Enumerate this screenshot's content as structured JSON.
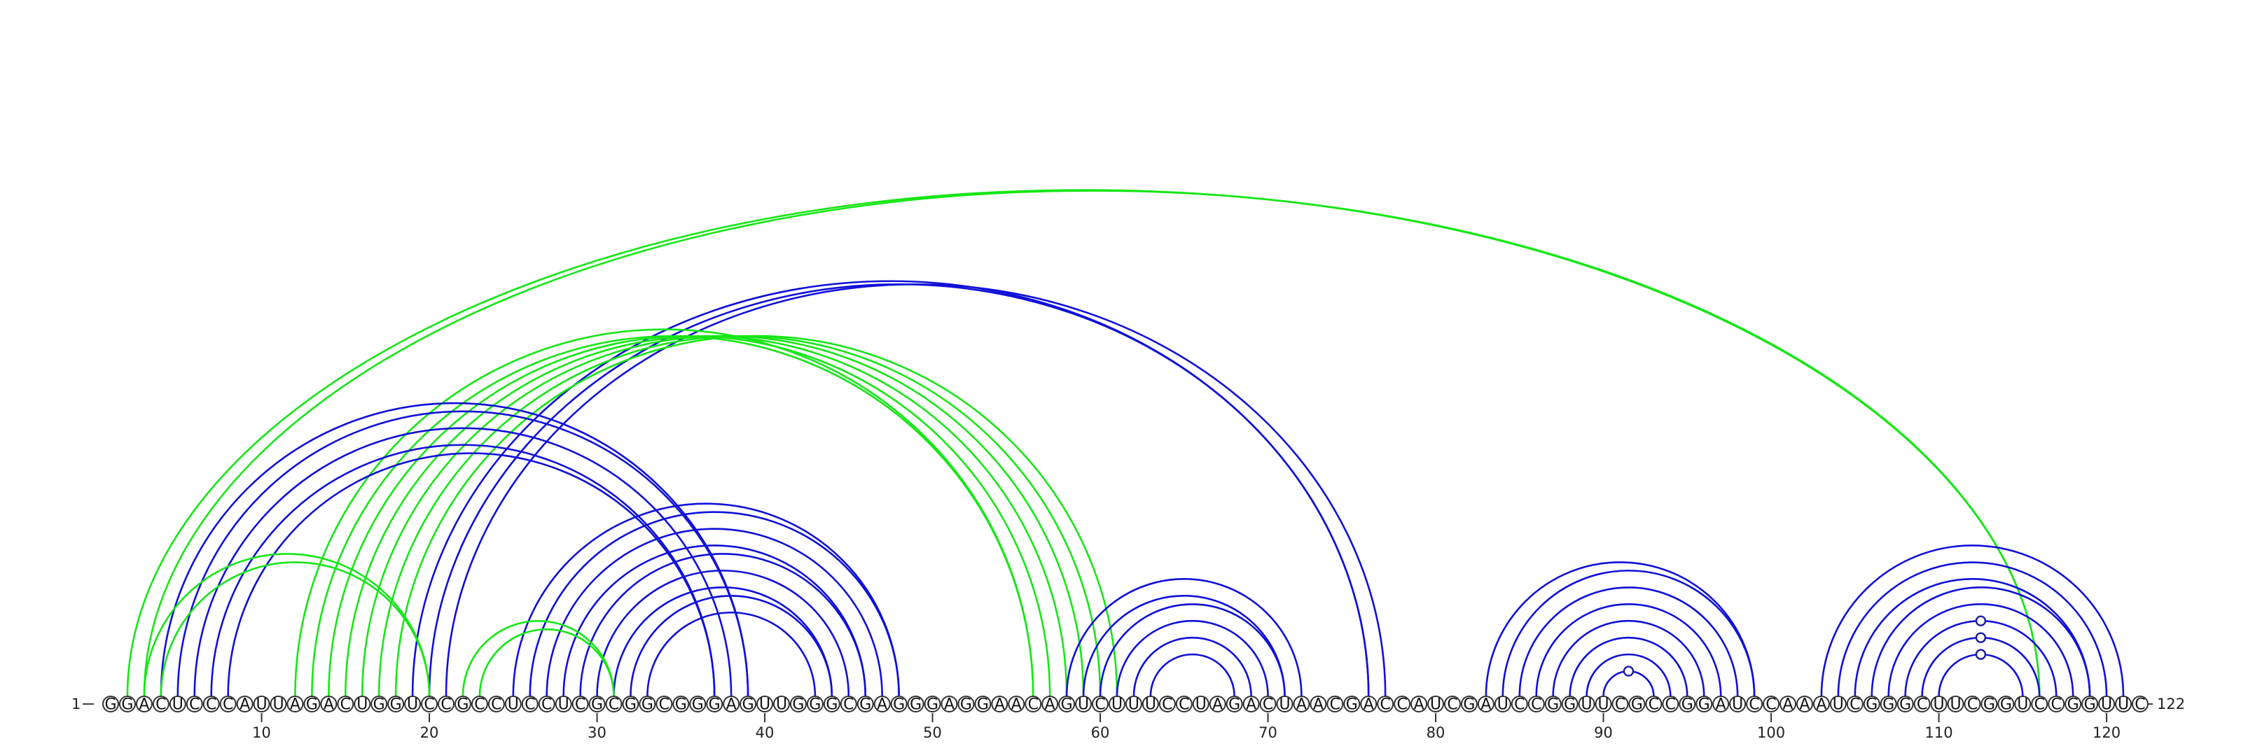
{
  "sequence": "GGACUCCCAUUAGACUGGUCCGCCUCCUCGCGGCGGGAGUUGGGCGAGGGAGGAACAGUCUUUCCUAGACUAACGACCAUCGAUCCGGUUCGCCGGAUCCAAAUCGGGCUUCGGUCCGGUUC",
  "start_label": "1",
  "end_label": "122",
  "ticks": [
    10,
    20,
    30,
    40,
    50,
    60,
    70,
    80,
    90,
    100,
    110,
    120
  ],
  "colors": {
    "blue": "#1010d8",
    "green": "#17e617"
  },
  "arcs": [
    {
      "i": 2,
      "j": 116,
      "color": "green"
    },
    {
      "i": 3,
      "j": 116,
      "color": "green"
    },
    {
      "i": 3,
      "j": 20,
      "color": "green"
    },
    {
      "i": 4,
      "j": 20,
      "color": "green"
    },
    {
      "i": 22,
      "j": 31,
      "color": "green"
    },
    {
      "i": 23,
      "j": 31,
      "color": "green"
    },
    {
      "i": 12,
      "j": 56,
      "color": "green"
    },
    {
      "i": 13,
      "j": 56,
      "color": "green"
    },
    {
      "i": 14,
      "j": 57,
      "color": "green"
    },
    {
      "i": 15,
      "j": 58,
      "color": "green"
    },
    {
      "i": 16,
      "j": 59,
      "color": "green"
    },
    {
      "i": 17,
      "j": 60,
      "color": "green"
    },
    {
      "i": 18,
      "j": 61,
      "color": "green"
    },
    {
      "i": 4,
      "j": 39,
      "color": "blue"
    },
    {
      "i": 5,
      "j": 39,
      "color": "blue"
    },
    {
      "i": 6,
      "j": 38,
      "color": "blue"
    },
    {
      "i": 7,
      "j": 37,
      "color": "blue"
    },
    {
      "i": 8,
      "j": 37,
      "color": "blue"
    },
    {
      "i": 19,
      "j": 76,
      "color": "blue"
    },
    {
      "i": 20,
      "j": 76,
      "color": "blue"
    },
    {
      "i": 21,
      "j": 77,
      "color": "blue"
    },
    {
      "i": 25,
      "j": 48,
      "color": "blue"
    },
    {
      "i": 26,
      "j": 48,
      "color": "blue"
    },
    {
      "i": 27,
      "j": 47,
      "color": "blue"
    },
    {
      "i": 28,
      "j": 46,
      "color": "blue"
    },
    {
      "i": 29,
      "j": 46,
      "color": "blue"
    },
    {
      "i": 30,
      "j": 45,
      "color": "blue"
    },
    {
      "i": 31,
      "j": 44,
      "color": "blue"
    },
    {
      "i": 32,
      "j": 44,
      "color": "blue"
    },
    {
      "i": 33,
      "j": 43,
      "color": "blue"
    },
    {
      "i": 58,
      "j": 72,
      "color": "blue"
    },
    {
      "i": 59,
      "j": 71,
      "color": "blue"
    },
    {
      "i": 60,
      "j": 71,
      "color": "blue"
    },
    {
      "i": 61,
      "j": 70,
      "color": "blue"
    },
    {
      "i": 62,
      "j": 69,
      "color": "blue"
    },
    {
      "i": 63,
      "j": 68,
      "color": "blue"
    },
    {
      "i": 83,
      "j": 99,
      "color": "blue"
    },
    {
      "i": 84,
      "j": 99,
      "color": "blue"
    },
    {
      "i": 85,
      "j": 98,
      "color": "blue"
    },
    {
      "i": 86,
      "j": 97,
      "color": "blue"
    },
    {
      "i": 87,
      "j": 96,
      "color": "blue"
    },
    {
      "i": 88,
      "j": 95,
      "color": "blue"
    },
    {
      "i": 89,
      "j": 94,
      "color": "blue"
    },
    {
      "i": 90,
      "j": 93,
      "color": "blue"
    },
    {
      "i": 103,
      "j": 121,
      "color": "blue"
    },
    {
      "i": 104,
      "j": 120,
      "color": "blue"
    },
    {
      "i": 105,
      "j": 119,
      "color": "blue"
    },
    {
      "i": 106,
      "j": 119,
      "color": "blue"
    },
    {
      "i": 107,
      "j": 118,
      "color": "blue"
    },
    {
      "i": 108,
      "j": 117,
      "color": "blue"
    },
    {
      "i": 109,
      "j": 116,
      "color": "blue"
    },
    {
      "i": 110,
      "j": 115,
      "color": "blue"
    }
  ],
  "markers": [
    {
      "i": 90,
      "j": 93
    },
    {
      "i": 108,
      "j": 117
    },
    {
      "i": 109,
      "j": 116
    },
    {
      "i": 110,
      "j": 115
    }
  ]
}
